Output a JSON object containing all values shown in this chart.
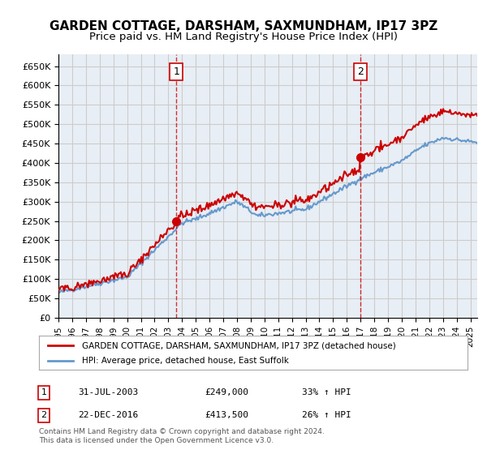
{
  "title": "GARDEN COTTAGE, DARSHAM, SAXMUNDHAM, IP17 3PZ",
  "subtitle": "Price paid vs. HM Land Registry's House Price Index (HPI)",
  "title_fontsize": 11,
  "subtitle_fontsize": 9.5,
  "ylabel_ticks": [
    "£0",
    "£50K",
    "£100K",
    "£150K",
    "£200K",
    "£250K",
    "£300K",
    "£350K",
    "£400K",
    "£450K",
    "£500K",
    "£550K",
    "£600K",
    "£650K"
  ],
  "ytick_values": [
    0,
    50000,
    100000,
    150000,
    200000,
    250000,
    300000,
    350000,
    400000,
    450000,
    500000,
    550000,
    600000,
    650000
  ],
  "ylim": [
    0,
    680000
  ],
  "xmin": 1995.0,
  "xmax": 2025.5,
  "xtick_years": [
    1995,
    1996,
    1997,
    1998,
    1999,
    2000,
    2001,
    2002,
    2003,
    2004,
    2005,
    2006,
    2007,
    2008,
    2009,
    2010,
    2011,
    2012,
    2013,
    2014,
    2015,
    2016,
    2017,
    2018,
    2019,
    2020,
    2021,
    2022,
    2023,
    2024,
    2025
  ],
  "red_line_color": "#cc0000",
  "blue_line_color": "#6699cc",
  "vline_color": "#cc0000",
  "grid_color": "#cccccc",
  "bg_color": "#ffffff",
  "plot_bg_color": "#e8eef5",
  "legend_box_color": "#ffffff",
  "sale1_x": 2003.58,
  "sale1_y": 249000,
  "sale1_label": "1",
  "sale2_x": 2016.98,
  "sale2_y": 413500,
  "sale2_label": "2",
  "legend_line1": "GARDEN COTTAGE, DARSHAM, SAXMUNDHAM, IP17 3PZ (detached house)",
  "legend_line2": "HPI: Average price, detached house, East Suffolk",
  "table_row1": [
    "1",
    "31-JUL-2003",
    "£249,000",
    "33% ↑ HPI"
  ],
  "table_row2": [
    "2",
    "22-DEC-2016",
    "£413,500",
    "26% ↑ HPI"
  ],
  "footer": "Contains HM Land Registry data © Crown copyright and database right 2024.\nThis data is licensed under the Open Government Licence v3.0.",
  "marker_color": "#cc0000",
  "marker_size": 7
}
